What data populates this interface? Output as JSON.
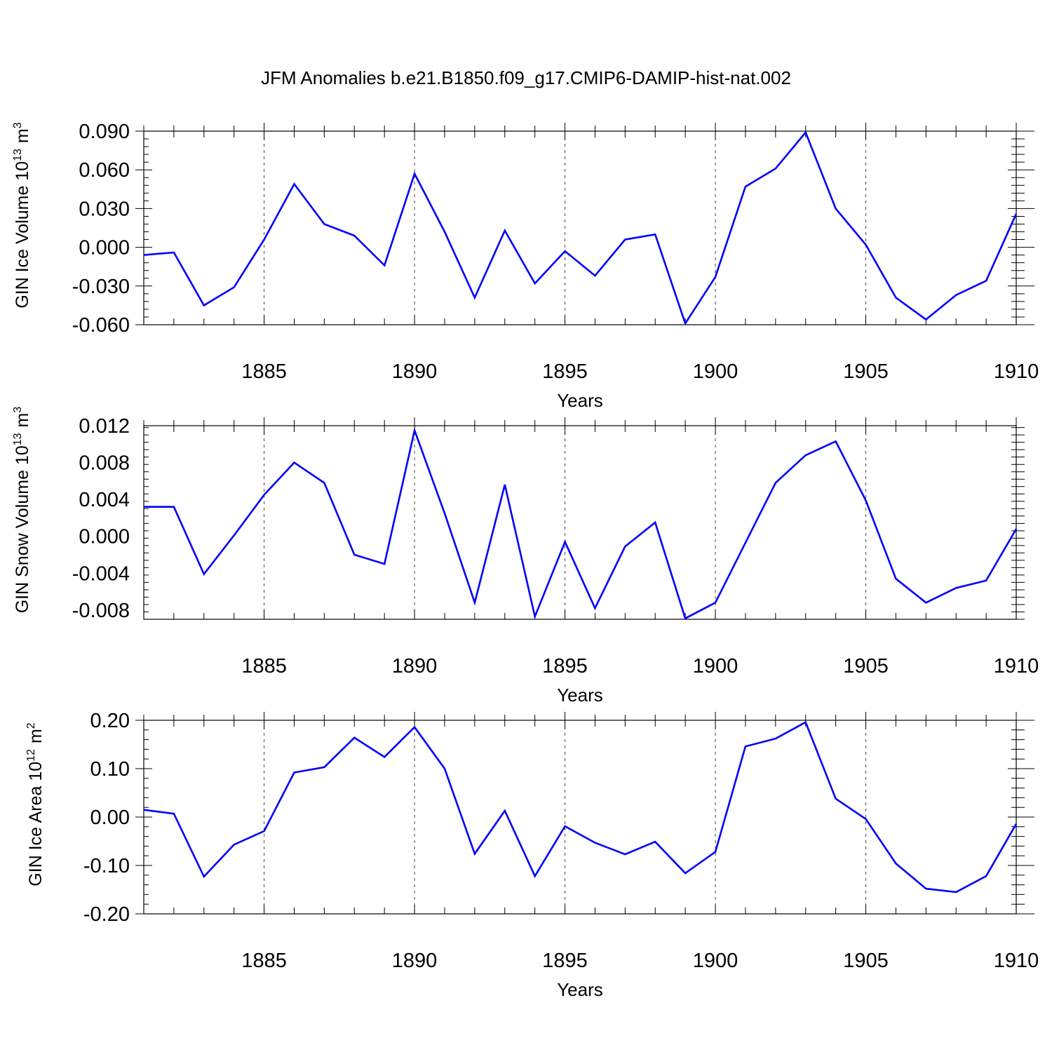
{
  "title": "JFM Anomalies b.e21.B1850.f09_g17.CMIP6-DAMIP-hist-nat.002",
  "colors": {
    "series": "#0000ff",
    "axis": "#000000",
    "grid": "#444444"
  },
  "chart_data": [
    {
      "type": "line",
      "ylabel": {
        "text": "GIN Ice Volume 10",
        "exp": "13",
        "unit": "m",
        "unit_exp": "3"
      },
      "xlabel": "Years",
      "xlim": [
        1881,
        1910
      ],
      "ylim": [
        -0.06,
        0.09
      ],
      "yticks": [
        -0.06,
        -0.03,
        0.0,
        0.03,
        0.06,
        0.09
      ],
      "ytick_labels": [
        "-0.060",
        "-0.030",
        "0.000",
        "0.030",
        "0.060",
        "0.090"
      ],
      "xticks": [
        1885,
        1890,
        1895,
        1900,
        1905,
        1910
      ],
      "xtick_labels": [
        "1885",
        "1890",
        "1895",
        "1900",
        "1905",
        "1910"
      ],
      "grid": "vertical dashed at major x ticks",
      "x": [
        1881,
        1882,
        1883,
        1884,
        1885,
        1886,
        1887,
        1888,
        1889,
        1890,
        1891,
        1892,
        1893,
        1894,
        1895,
        1896,
        1897,
        1898,
        1899,
        1900,
        1901,
        1902,
        1903,
        1904,
        1905,
        1906,
        1907,
        1908,
        1909,
        1910
      ],
      "values": [
        -0.006,
        -0.004,
        -0.045,
        -0.031,
        0.006,
        0.049,
        0.018,
        0.009,
        -0.014,
        0.057,
        0.012,
        -0.039,
        0.013,
        -0.028,
        -0.003,
        -0.022,
        0.006,
        0.01,
        -0.059,
        -0.023,
        0.047,
        0.061,
        0.089,
        0.03,
        0.002,
        -0.039,
        -0.056,
        -0.037,
        -0.026,
        0.026
      ]
    },
    {
      "type": "line",
      "ylabel": {
        "text": "GIN Snow Volume 10",
        "exp": "13",
        "unit": "m",
        "unit_exp": "3"
      },
      "xlabel": "Years",
      "xlim": [
        1881,
        1910
      ],
      "ylim": [
        -0.009,
        0.012
      ],
      "yticks": [
        -0.008,
        -0.004,
        0.0,
        0.004,
        0.008,
        0.012
      ],
      "ytick_labels": [
        "-0.008",
        "-0.004",
        "0.000",
        "0.004",
        "0.008",
        "0.012"
      ],
      "xticks": [
        1885,
        1890,
        1895,
        1900,
        1905,
        1910
      ],
      "xtick_labels": [
        "1885",
        "1890",
        "1895",
        "1900",
        "1905",
        "1910"
      ],
      "grid": "vertical dashed at major x ticks",
      "x": [
        1881,
        1882,
        1883,
        1884,
        1885,
        1886,
        1887,
        1888,
        1889,
        1890,
        1891,
        1892,
        1893,
        1894,
        1895,
        1896,
        1897,
        1898,
        1899,
        1900,
        1901,
        1902,
        1903,
        1904,
        1905,
        1906,
        1907,
        1908,
        1909,
        1910
      ],
      "values": [
        0.0032,
        0.0032,
        -0.0041,
        0.0001,
        0.0045,
        0.008,
        0.0058,
        -0.002,
        -0.003,
        0.0115,
        0.0025,
        -0.0072,
        0.0056,
        -0.0087,
        -0.0006,
        -0.0078,
        -0.0011,
        0.0015,
        -0.0089,
        -0.0072,
        -0.0007,
        0.0058,
        0.0088,
        0.0103,
        0.0039,
        -0.0046,
        -0.0072,
        -0.0056,
        -0.0048,
        0.0008
      ]
    },
    {
      "type": "line",
      "ylabel": {
        "text": "GIN Ice Area 10",
        "exp": "12",
        "unit": "m",
        "unit_exp": "2"
      },
      "xlabel": "Years",
      "xlim": [
        1881,
        1910
      ],
      "ylim": [
        -0.2,
        0.2
      ],
      "yticks": [
        -0.2,
        -0.1,
        0.0,
        0.1,
        0.2
      ],
      "ytick_labels": [
        "-0.20",
        "-0.10",
        "0.00",
        "0.10",
        "0.20"
      ],
      "xticks": [
        1885,
        1890,
        1895,
        1900,
        1905,
        1910
      ],
      "xtick_labels": [
        "1885",
        "1890",
        "1895",
        "1900",
        "1905",
        "1910"
      ],
      "grid": "vertical dashed at major x ticks",
      "x": [
        1881,
        1882,
        1883,
        1884,
        1885,
        1886,
        1887,
        1888,
        1889,
        1890,
        1891,
        1892,
        1893,
        1894,
        1895,
        1896,
        1897,
        1898,
        1899,
        1900,
        1901,
        1902,
        1903,
        1904,
        1905,
        1906,
        1907,
        1908,
        1909,
        1910
      ],
      "values": [
        0.015,
        0.007,
        -0.123,
        -0.057,
        -0.029,
        0.092,
        0.103,
        0.164,
        0.124,
        0.186,
        0.1,
        -0.076,
        0.013,
        -0.122,
        -0.019,
        -0.053,
        -0.077,
        -0.051,
        -0.116,
        -0.072,
        0.146,
        0.162,
        0.196,
        0.038,
        -0.004,
        -0.096,
        -0.148,
        -0.155,
        -0.122,
        -0.014
      ]
    }
  ]
}
